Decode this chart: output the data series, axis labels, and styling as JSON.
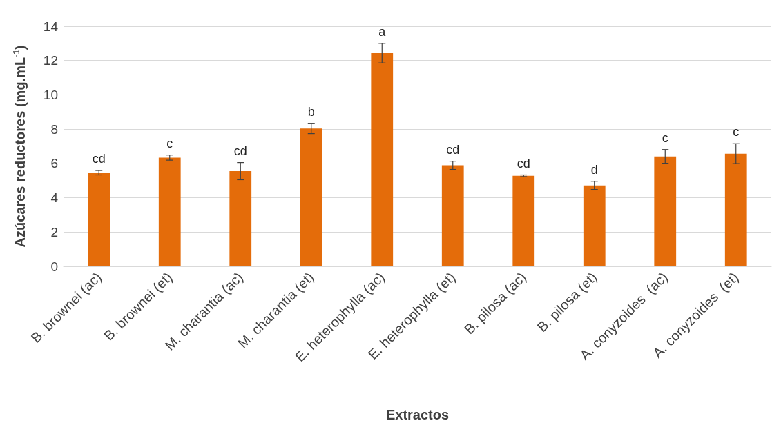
{
  "chart_data": {
    "type": "bar",
    "xlabel": "Extractos",
    "ylabel": "Azúcares reductores (mg.mL$^{-1}$)",
    "categories": [
      "B. brownei (ac)",
      "B. brownei (et)",
      "M. charantia (ac)",
      "M. charantia (et)",
      "E. heterophylla (ac)",
      "E. heterophylla (et)",
      "B. pilosa (ac)",
      "B. pilosa (et)",
      "A. conyzoides  (ac)",
      "A. conyzoides  (et)"
    ],
    "values": [
      5.46,
      6.34,
      5.55,
      8.04,
      12.43,
      5.89,
      5.28,
      4.72,
      6.41,
      6.57
    ],
    "errors": [
      0.13,
      0.15,
      0.5,
      0.3,
      0.57,
      0.24,
      0.05,
      0.24,
      0.4,
      0.58
    ],
    "color": "#e46c0a",
    "ylim": [
      0,
      14
    ],
    "yticks": [
      0,
      2,
      4,
      6,
      8,
      10,
      12,
      14
    ],
    "grid": "y",
    "annotations": [
      "cd",
      "c",
      "cd",
      "b",
      "a",
      "cd",
      "cd",
      "d",
      "c",
      "c"
    ]
  }
}
